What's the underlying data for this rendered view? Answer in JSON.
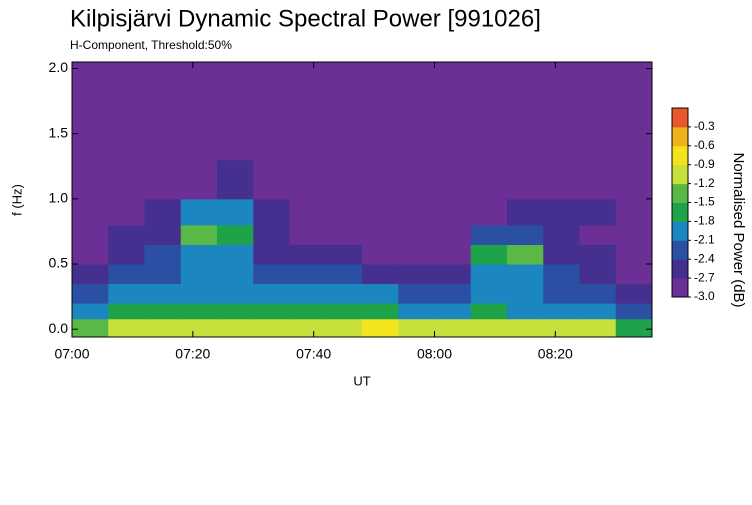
{
  "chart_data": {
    "type": "heatmap",
    "title": "Kilpisjärvi Dynamic Spectral Power [991026]",
    "subtitle": "H-Component, Threshold:50%",
    "x_label": "UT",
    "y_label": "f (Hz)",
    "colorbar_label": "Normalised Power (dB)",
    "xbins": [
      420,
      426,
      432,
      438,
      444,
      450,
      456,
      462,
      468,
      474,
      480,
      486,
      492,
      498,
      504,
      510,
      516
    ],
    "ybins": [
      -0.06,
      0.08,
      0.2,
      0.35,
      0.5,
      0.65,
      0.8,
      1.0,
      1.3,
      1.7,
      2.05
    ],
    "values": [
      [
        -1.5,
        -1.1,
        -1.0,
        -1.0,
        -1.0,
        -1.1,
        -1.0,
        -1.0,
        -0.9,
        -1.0,
        -1.0,
        -1.0,
        -1.1,
        -1.1,
        -1.2,
        -1.6
      ],
      [
        -2.0,
        -1.7,
        -1.7,
        -1.6,
        -1.6,
        -1.7,
        -1.7,
        -1.6,
        -1.7,
        -1.8,
        -1.8,
        -1.7,
        -1.8,
        -1.8,
        -1.9,
        -2.2
      ],
      [
        -2.3,
        -2.0,
        -2.0,
        -1.9,
        -1.9,
        -2.1,
        -2.0,
        -2.0,
        -2.1,
        -2.2,
        -2.2,
        -2.0,
        -2.1,
        -2.2,
        -2.2,
        -2.5
      ],
      [
        -2.6,
        -2.3,
        -2.2,
        -2.0,
        -2.0,
        -2.3,
        -2.4,
        -2.4,
        -2.5,
        -2.5,
        -2.5,
        -1.8,
        -2.0,
        -2.4,
        -2.5,
        -2.7
      ],
      [
        -2.7,
        -2.5,
        -2.4,
        -2.0,
        -2.1,
        -2.5,
        -2.6,
        -2.6,
        -2.7,
        -2.7,
        -2.7,
        -1.6,
        -1.5,
        -2.5,
        -2.6,
        -2.8
      ],
      [
        -2.8,
        -2.6,
        -2.5,
        -1.4,
        -1.6,
        -2.6,
        -2.7,
        -2.7,
        -2.8,
        -2.8,
        -2.8,
        -2.4,
        -2.3,
        -2.6,
        -2.7,
        -2.9
      ],
      [
        -2.9,
        -2.7,
        -2.6,
        -2.1,
        -2.0,
        -2.6,
        -2.7,
        -2.8,
        -2.8,
        -2.8,
        -2.8,
        -2.7,
        -2.6,
        -2.5,
        -2.5,
        -2.9
      ],
      [
        -2.9,
        -2.8,
        -2.8,
        -2.7,
        -2.6,
        -2.8,
        -2.8,
        -2.8,
        -2.9,
        -2.9,
        -2.9,
        -2.8,
        -2.8,
        -2.7,
        -2.7,
        -2.9
      ],
      [
        -2.9,
        -2.9,
        -2.8,
        -2.8,
        -2.8,
        -2.9,
        -2.9,
        -2.9,
        -2.9,
        -2.9,
        -2.9,
        -2.9,
        -2.9,
        -2.8,
        -2.8,
        -2.9
      ],
      [
        -2.9,
        -2.9,
        -2.9,
        -2.9,
        -2.9,
        -2.9,
        -2.9,
        -2.9,
        -2.9,
        -2.9,
        -2.9,
        -2.9,
        -2.9,
        -2.9,
        -2.9,
        -3.0
      ]
    ],
    "xlim": [
      420,
      516
    ],
    "ylim": [
      -0.06,
      2.05
    ],
    "xticks": [
      {
        "value": 420,
        "label": "07:00"
      },
      {
        "value": 440,
        "label": "07:20"
      },
      {
        "value": 460,
        "label": "07:40"
      },
      {
        "value": 480,
        "label": "08:00"
      },
      {
        "value": 500,
        "label": "08:20"
      }
    ],
    "yticks": [
      {
        "value": 0,
        "label": "0.0"
      },
      0.5,
      {
        "value": 1,
        "label": "1.0"
      },
      1.5,
      {
        "value": 2,
        "label": "2.0"
      }
    ],
    "clim": [
      -3.0,
      0
    ],
    "cticks": [
      {
        "value": -3,
        "label": "-3.0"
      },
      -2.7,
      -2.4,
      -2.1,
      -1.8,
      -1.5,
      -1.2,
      -0.9,
      -0.6,
      -0.3
    ],
    "colors": [
      "#6b2f95",
      "#46308f",
      "#2a4fa3",
      "#1c86c0",
      "#1ea34a",
      "#5ab946",
      "#c8e03a",
      "#f4e41e",
      "#f0b31e",
      "#e8582a"
    ]
  }
}
